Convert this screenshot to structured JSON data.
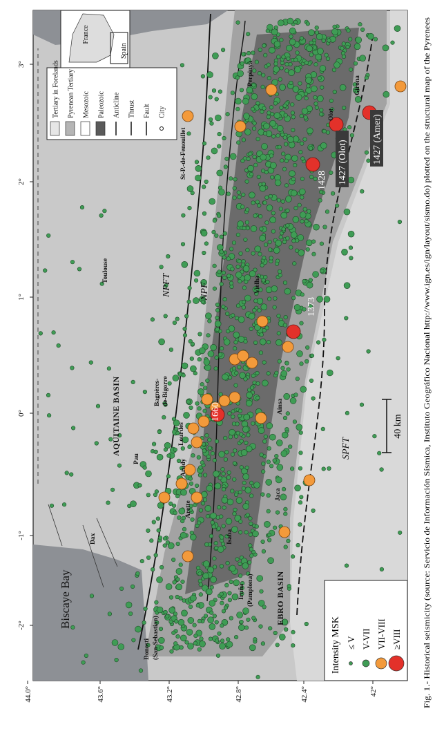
{
  "caption": "Fig. 1.- Historical seismicity (source: Servicio de Información Sísmica, Instituto Geográfico Nacional http://www.ign.es/ign/layout/sismo.do) plotted on the structural map of the Pyrenees",
  "axes": {
    "longitude": [
      "-2°",
      "-1°",
      "0°",
      "1°",
      "2°",
      "3°"
    ],
    "latitude": [
      "44.0°",
      "43.6°",
      "43.2°",
      "42.8°",
      "42.4°",
      "42°"
    ]
  },
  "legend": {
    "items": [
      "Tertiary in Forelands",
      "Pyrenean Tertiary",
      "Mesozoic",
      "Paleozoic",
      "Anticline",
      "Thrust",
      "Fault",
      "City"
    ]
  },
  "inset": {
    "labels": [
      "France",
      "Spain"
    ]
  },
  "intensity_legend": {
    "title": "Intensity MSK",
    "items": [
      "≤ V",
      "V-VII",
      "VII-VIII",
      "≥VIII"
    ]
  },
  "scale_bar": "40 km",
  "places": [
    "Biscaye Bay",
    "Donosti",
    "(San-Sebastian)",
    "Dax",
    "Pau",
    "Arudy",
    "Arette",
    "Lourdes",
    "Bagnères-",
    "de-Bigorre",
    "AQUITAINE BASIN",
    "Toulouse",
    "St-P.-de-Fenouillet",
    "Perpinyà",
    "Girona",
    "Olot",
    "Vielha",
    "Ainsa",
    "Jaca",
    "Isaba",
    "Iruña",
    "(Pamplona)",
    "EBRO BASIN"
  ],
  "structures": [
    "NPFT",
    "NPF",
    "SPFT"
  ],
  "events": [
    "1660",
    "1373",
    "1428",
    "1427 (Olot)",
    "1427 (Amer)"
  ]
}
